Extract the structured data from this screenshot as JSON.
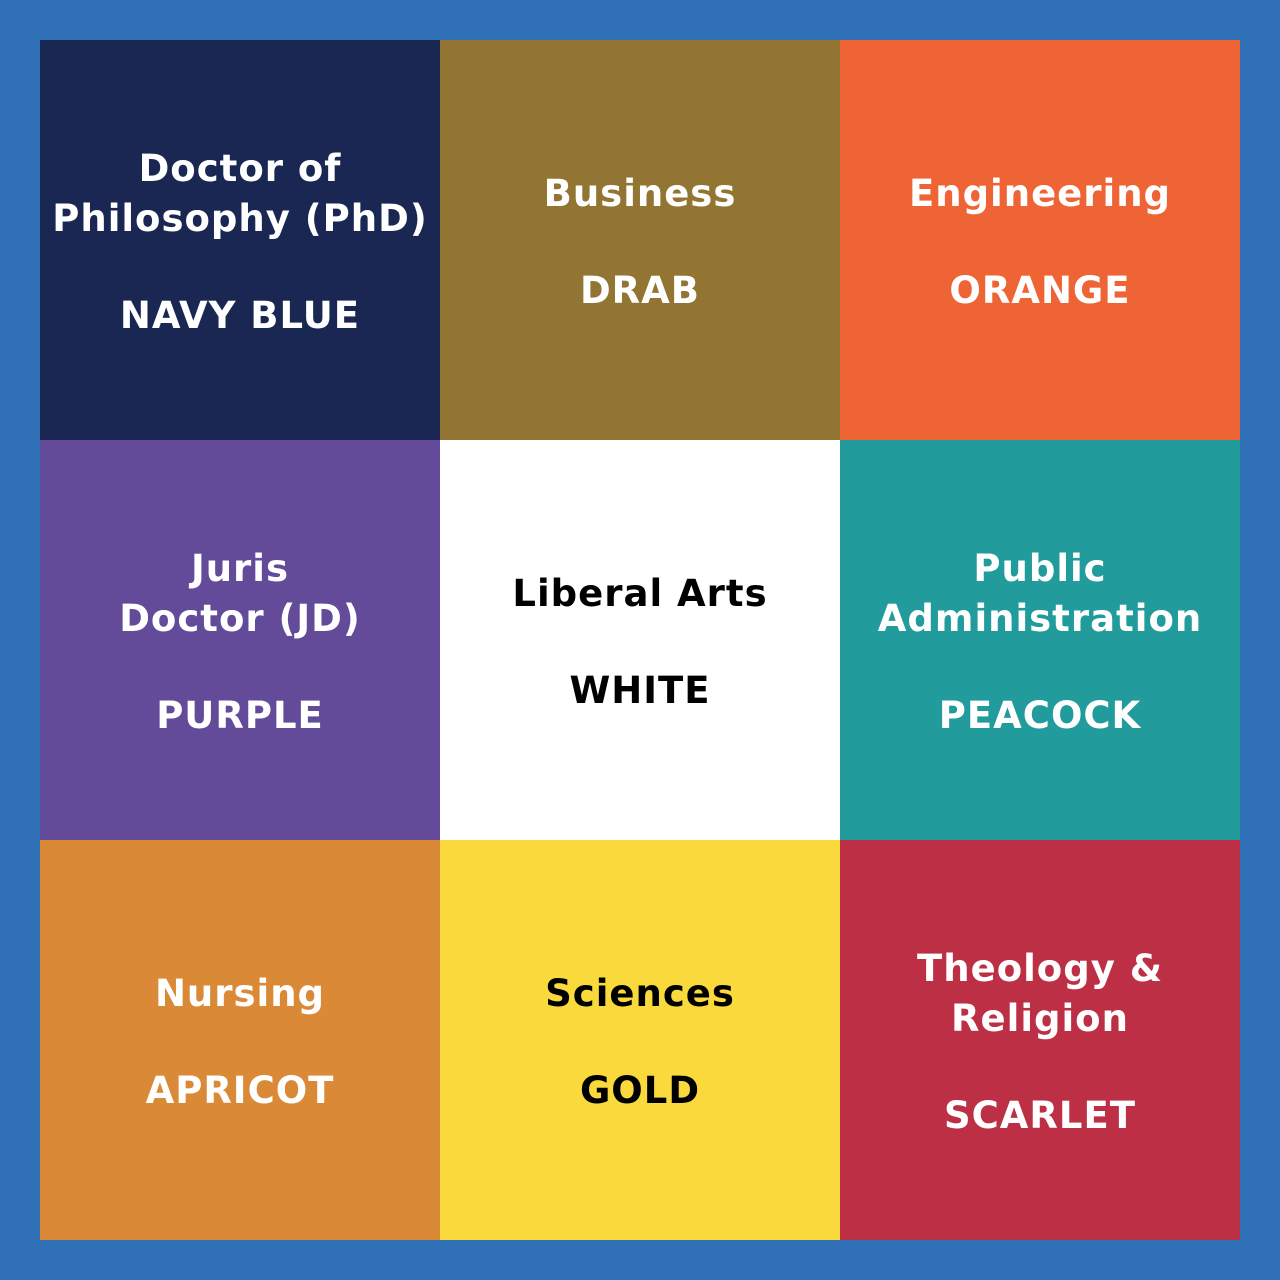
{
  "cells": [
    {
      "name": "Doctor of\nPhilosophy (PhD)",
      "color": "NAVY BLUE",
      "bg": "#1b2753",
      "fg": "#ffffff"
    },
    {
      "name": "Business",
      "color": "DRAB",
      "bg": "#927533",
      "fg": "#ffffff"
    },
    {
      "name": "Engineering",
      "color": "ORANGE",
      "bg": "#ef6434",
      "fg": "#ffffff"
    },
    {
      "name": "Juris\nDoctor (JD)",
      "color": "PURPLE",
      "bg": "#634b99",
      "fg": "#ffffff"
    },
    {
      "name": "Liberal Arts",
      "color": "WHITE",
      "bg": "#ffffff",
      "fg": "#000000"
    },
    {
      "name": "Public\nAdministration",
      "color": "PEACOCK",
      "bg": "#219b9c",
      "fg": "#ffffff"
    },
    {
      "name": "Nursing",
      "color": "APRICOT",
      "bg": "#da8937",
      "fg": "#ffffff"
    },
    {
      "name": "Sciences",
      "color": "GOLD",
      "bg": "#f9d93b",
      "fg": "#000000"
    },
    {
      "name": "Theology &\nReligion",
      "color": "SCARLET",
      "bg": "#bd2f45",
      "fg": "#ffffff"
    }
  ],
  "border_color": "#2e6fb5"
}
